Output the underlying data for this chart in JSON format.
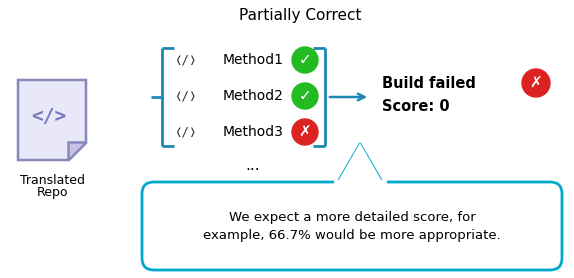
{
  "title": "Partially Correct",
  "repo_label": "Translated\nRepo",
  "methods": [
    "Method1",
    "Method2",
    "Method3"
  ],
  "method_checks": [
    true,
    true,
    false
  ],
  "dots": "...",
  "build_text": "Build failed",
  "score_text": "Score: 0",
  "bubble_text1": "We expect a more detailed score, for",
  "bubble_text2": "example, 66.7% would be more appropriate.",
  "bg_color": "#ffffff",
  "doc_fill": "#e8e8f8",
  "doc_stroke": "#8888bb",
  "bracket_color": "#1e88b4",
  "bubble_border": "#00aacc",
  "bubble_fill": "#ffffff",
  "green": "#22bb22",
  "red": "#dd2222",
  "check_symbol": "✓",
  "cross_symbol": "✗",
  "code_icon": "❬/❭"
}
